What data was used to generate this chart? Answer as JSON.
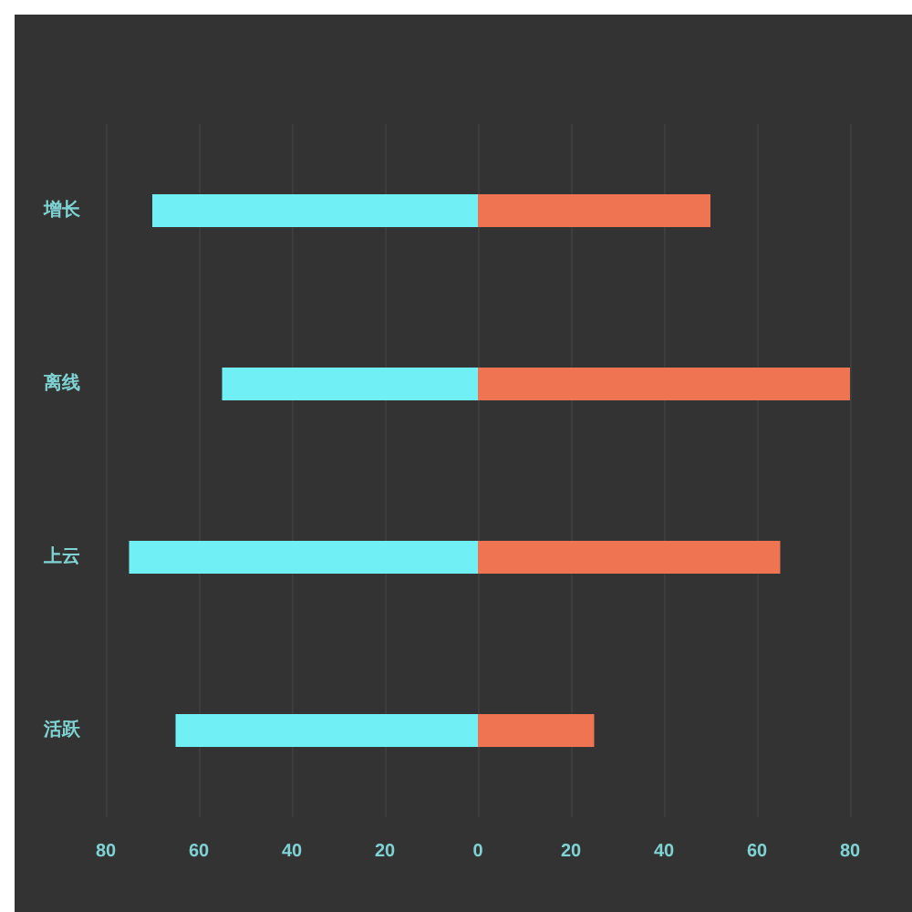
{
  "chart_data": {
    "type": "bar",
    "orientation": "horizontal",
    "stacked": true,
    "categories": [
      "增长",
      "离线",
      "上云",
      "活跃"
    ],
    "series": [
      {
        "color": "#70f0f5",
        "values": [
          -70,
          -55,
          -75,
          -65
        ]
      },
      {
        "color": "#ef7552",
        "values": [
          50,
          80,
          65,
          25
        ]
      }
    ],
    "xlim": [
      -80,
      80
    ],
    "xticks": [
      {
        "value": -80,
        "label": "80"
      },
      {
        "value": -60,
        "label": "60"
      },
      {
        "value": -40,
        "label": "40"
      },
      {
        "value": -20,
        "label": "20"
      },
      0,
      20,
      40,
      60,
      80
    ],
    "grid": "x"
  }
}
